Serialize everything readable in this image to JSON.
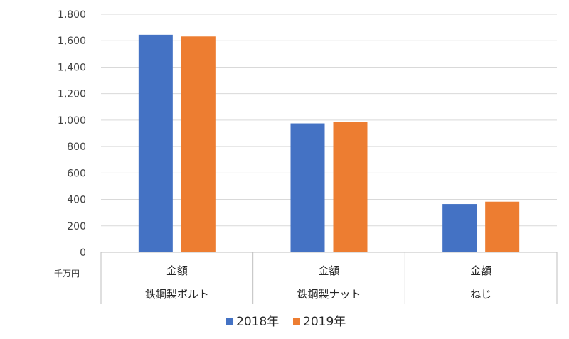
{
  "chart_data": {
    "type": "bar",
    "categories": [
      {
        "measure": "金額",
        "name": "鉄鋼製ボルト"
      },
      {
        "measure": "金額",
        "name": "鉄鋼製ナット"
      },
      {
        "measure": "金額",
        "name": "ねじ"
      }
    ],
    "series": [
      {
        "name": "2018年",
        "color": "#4472C4",
        "values": [
          1645,
          975,
          365
        ]
      },
      {
        "name": "2019年",
        "color": "#ED7D31",
        "values": [
          1632,
          988,
          383
        ]
      }
    ],
    "unit_label": "千万円",
    "ylim": [
      0,
      1800
    ],
    "yticks": [
      0,
      200,
      400,
      600,
      800,
      1000,
      1200,
      1400,
      1600,
      1800
    ],
    "ytick_labels": [
      "0",
      "200",
      "400",
      "600",
      "800",
      "1,000",
      "1,200",
      "1,400",
      "1,600",
      "1,800"
    ],
    "grid": true,
    "legend_position": "bottom"
  }
}
